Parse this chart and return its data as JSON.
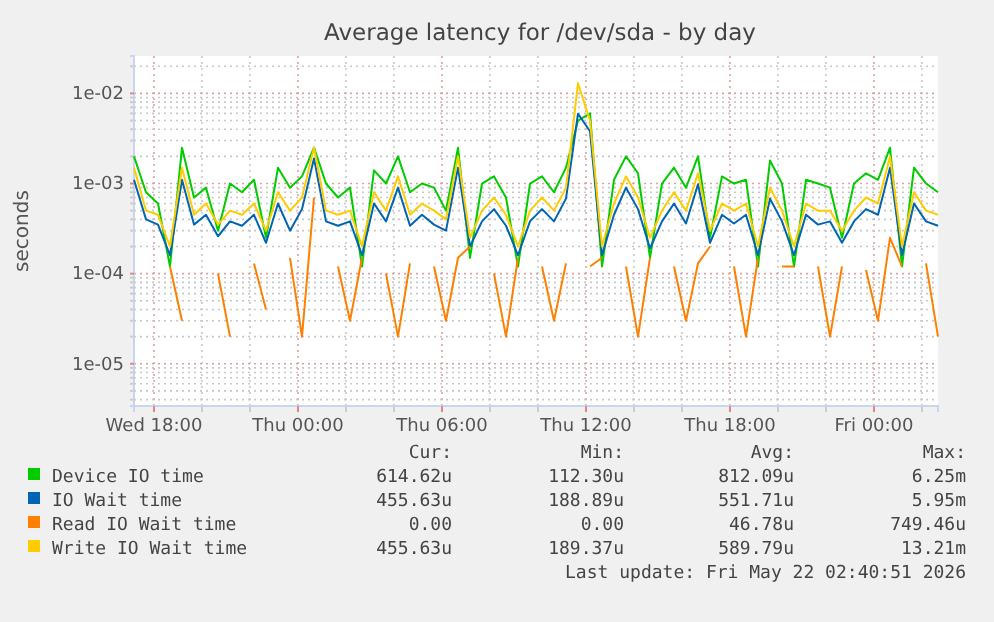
{
  "chart_data": {
    "type": "line",
    "title": "Average latency for /dev/sda - by day",
    "ylabel": "seconds",
    "log": true,
    "grid": true,
    "legend": "bottom",
    "marker": "none",
    "line_style": "solid",
    "xlim": [
      "2026-05-20T17:10",
      "2026-05-22T02:40"
    ],
    "xticks": [
      {
        "value": "2026-05-20T18:00",
        "label": "Wed 18:00"
      },
      {
        "value": "2026-05-20T20:00",
        "label": null
      },
      {
        "value": "2026-05-20T22:00",
        "label": null
      },
      {
        "value": "2026-05-21T00:00",
        "label": "Thu 00:00"
      },
      {
        "value": "2026-05-21T02:00",
        "label": null
      },
      {
        "value": "2026-05-21T04:00",
        "label": null
      },
      {
        "value": "2026-05-21T06:00",
        "label": "Thu 06:00"
      },
      {
        "value": "2026-05-21T08:00",
        "label": null
      },
      {
        "value": "2026-05-21T10:00",
        "label": null
      },
      {
        "value": "2026-05-21T12:00",
        "label": "Thu 12:00"
      },
      {
        "value": "2026-05-21T14:00",
        "label": null
      },
      {
        "value": "2026-05-21T16:00",
        "label": null
      },
      {
        "value": "2026-05-21T18:00",
        "label": "Thu 18:00"
      },
      {
        "value": "2026-05-21T20:00",
        "label": null
      },
      {
        "value": "2026-05-21T22:00",
        "label": null
      },
      {
        "value": "2026-05-22T00:00",
        "label": "Fri 00:00"
      },
      {
        "value": "2026-05-22T02:00",
        "label": null
      }
    ],
    "ylim": [
      3.4e-06,
      0.026
    ],
    "yticks": [
      {
        "value": 4e-06,
        "label": null
      },
      {
        "value": 5e-06,
        "label": null
      },
      {
        "value": 6e-06,
        "label": null
      },
      {
        "value": 7e-06,
        "label": null
      },
      {
        "value": 8e-06,
        "label": null
      },
      {
        "value": 9e-06,
        "label": null
      },
      {
        "value": 1e-05,
        "label": "1e-05"
      },
      {
        "value": 2e-05,
        "label": null
      },
      {
        "value": 3e-05,
        "label": null
      },
      {
        "value": 4e-05,
        "label": null
      },
      {
        "value": 5e-05,
        "label": null
      },
      {
        "value": 6e-05,
        "label": null
      },
      {
        "value": 7e-05,
        "label": null
      },
      {
        "value": 8e-05,
        "label": null
      },
      {
        "value": 9e-05,
        "label": null
      },
      {
        "value": 0.0001,
        "label": "1e-04"
      },
      {
        "value": 0.0002,
        "label": null
      },
      {
        "value": 0.0003,
        "label": null
      },
      {
        "value": 0.0004,
        "label": null
      },
      {
        "value": 0.0005,
        "label": null
      },
      {
        "value": 0.0006,
        "label": null
      },
      {
        "value": 0.0007,
        "label": null
      },
      {
        "value": 0.0008,
        "label": null
      },
      {
        "value": 0.0009,
        "label": null
      },
      {
        "value": 0.001,
        "label": "1e-03"
      },
      {
        "value": 0.002,
        "label": null
      },
      {
        "value": 0.003,
        "label": null
      },
      {
        "value": 0.004,
        "label": null
      },
      {
        "value": 0.005,
        "label": null
      },
      {
        "value": 0.006,
        "label": null
      },
      {
        "value": 0.007,
        "label": null
      },
      {
        "value": 0.008,
        "label": null
      },
      {
        "value": 0.009,
        "label": null
      },
      {
        "value": 0.01,
        "label": "1e-02"
      },
      {
        "value": 0.02,
        "label": null
      }
    ],
    "x": [
      "2026-05-20T17:10",
      "2026-05-20T17:40",
      "2026-05-20T18:10",
      "2026-05-20T18:40",
      "2026-05-20T19:10",
      "2026-05-20T19:40",
      "2026-05-20T20:10",
      "2026-05-20T20:40",
      "2026-05-20T21:10",
      "2026-05-20T21:40",
      "2026-05-20T22:10",
      "2026-05-20T22:40",
      "2026-05-20T23:10",
      "2026-05-20T23:40",
      "2026-05-21T00:10",
      "2026-05-21T00:40",
      "2026-05-21T01:10",
      "2026-05-21T01:40",
      "2026-05-21T02:10",
      "2026-05-21T02:40",
      "2026-05-21T03:10",
      "2026-05-21T03:40",
      "2026-05-21T04:10",
      "2026-05-21T04:40",
      "2026-05-21T05:10",
      "2026-05-21T05:40",
      "2026-05-21T06:10",
      "2026-05-21T06:40",
      "2026-05-21T07:10",
      "2026-05-21T07:40",
      "2026-05-21T08:10",
      "2026-05-21T08:40",
      "2026-05-21T09:10",
      "2026-05-21T09:40",
      "2026-05-21T10:10",
      "2026-05-21T10:40",
      "2026-05-21T11:10",
      "2026-05-21T11:40",
      "2026-05-21T12:10",
      "2026-05-21T12:40",
      "2026-05-21T13:10",
      "2026-05-21T13:40",
      "2026-05-21T14:10",
      "2026-05-21T14:40",
      "2026-05-21T15:10",
      "2026-05-21T15:40",
      "2026-05-21T16:10",
      "2026-05-21T16:40",
      "2026-05-21T17:10",
      "2026-05-21T17:40",
      "2026-05-21T18:10",
      "2026-05-21T18:40",
      "2026-05-21T19:10",
      "2026-05-21T19:40",
      "2026-05-21T20:10",
      "2026-05-21T20:40",
      "2026-05-21T21:10",
      "2026-05-21T21:40",
      "2026-05-21T22:10",
      "2026-05-21T22:40",
      "2026-05-21T23:10",
      "2026-05-21T23:40",
      "2026-05-22T00:10",
      "2026-05-22T00:40",
      "2026-05-22T01:10",
      "2026-05-22T01:40",
      "2026-05-22T02:10",
      "2026-05-22T02:40"
    ],
    "series": [
      {
        "name": "Device IO time",
        "color": "#00cc00",
        "values": [
          0.002,
          0.0008,
          0.0006,
          0.00012,
          0.0025,
          0.0007,
          0.0009,
          0.0003,
          0.001,
          0.0008,
          0.0011,
          0.00025,
          0.0015,
          0.0009,
          0.0012,
          0.0025,
          0.001,
          0.0007,
          0.0009,
          0.00012,
          0.0014,
          0.001,
          0.002,
          0.0008,
          0.001,
          0.0009,
          0.0005,
          0.0025,
          0.00015,
          0.001,
          0.0012,
          0.0007,
          0.00012,
          0.001,
          0.0012,
          0.0008,
          0.0015,
          0.005,
          0.006,
          0.00012,
          0.0011,
          0.002,
          0.0013,
          0.00015,
          0.001,
          0.0015,
          0.0009,
          0.002,
          0.00025,
          0.0012,
          0.001,
          0.0011,
          0.00012,
          0.0018,
          0.001,
          0.00012,
          0.0011,
          0.001,
          0.0009,
          0.00025,
          0.001,
          0.0013,
          0.0011,
          0.0025,
          0.00012,
          0.0015,
          0.001,
          0.0008
        ]
      },
      {
        "name": "IO Wait time",
        "color": "#0066b3",
        "values": [
          0.0011,
          0.0004,
          0.00035,
          0.00016,
          0.0011,
          0.00035,
          0.00045,
          0.00026,
          0.00038,
          0.00034,
          0.00045,
          0.00022,
          0.0006,
          0.0003,
          0.00052,
          0.0019,
          0.00038,
          0.00034,
          0.00038,
          0.00016,
          0.0006,
          0.00038,
          0.0009,
          0.00034,
          0.00045,
          0.00035,
          0.0003,
          0.0015,
          0.0002,
          0.00038,
          0.00052,
          0.00034,
          0.00016,
          0.00038,
          0.00052,
          0.00038,
          0.00068,
          0.00595,
          0.0038,
          0.00016,
          0.00045,
          0.0009,
          0.00052,
          0.00019,
          0.00038,
          0.0006,
          0.00036,
          0.00098,
          0.00022,
          0.00045,
          0.00036,
          0.00045,
          0.00016,
          0.00068,
          0.00038,
          0.00016,
          0.00045,
          0.00035,
          0.00038,
          0.00022,
          0.00038,
          0.00052,
          0.00045,
          0.0015,
          0.00016,
          0.0006,
          0.00038,
          0.00034
        ]
      },
      {
        "name": "Read IO Wait time",
        "color": "#ff8000",
        "values": [
          null,
          null,
          null,
          0.00012,
          3e-05,
          null,
          null,
          0.0001,
          2e-05,
          null,
          0.00013,
          4e-05,
          null,
          0.00015,
          2e-05,
          0.0007,
          null,
          0.00012,
          3e-05,
          0.00015,
          null,
          0.0001,
          2e-05,
          0.00013,
          null,
          0.00012,
          3e-05,
          0.00015,
          0.0002,
          null,
          0.0001,
          2e-05,
          0.00015,
          null,
          0.00012,
          3e-05,
          0.00013,
          null,
          0.00012,
          0.00015,
          null,
          0.00012,
          2e-05,
          0.00015,
          null,
          0.00012,
          3e-05,
          0.00013,
          0.0002,
          null,
          0.00012,
          2e-05,
          0.00015,
          null,
          0.00012,
          0.00012,
          null,
          0.00012,
          2e-05,
          0.00012,
          null,
          0.00011,
          3e-05,
          0.00025,
          0.00012,
          null,
          0.00013,
          2e-05
        ]
      },
      {
        "name": "Write IO Wait time",
        "color": "#ffcc00",
        "values": [
          0.0015,
          0.0005,
          0.00045,
          0.0002,
          0.0015,
          0.00045,
          0.0006,
          0.00035,
          0.0005,
          0.00045,
          0.0006,
          0.0003,
          0.0008,
          0.0005,
          0.0007,
          0.0025,
          0.0005,
          0.00045,
          0.0005,
          0.0002,
          0.0008,
          0.0005,
          0.0012,
          0.00045,
          0.0006,
          0.0005,
          0.0004,
          0.002,
          0.00025,
          0.0005,
          0.0007,
          0.00045,
          0.0002,
          0.0005,
          0.0007,
          0.0005,
          0.0009,
          0.013,
          0.005,
          0.0002,
          0.0006,
          0.0012,
          0.0007,
          0.00025,
          0.0005,
          0.0008,
          0.0005,
          0.0013,
          0.0003,
          0.0006,
          0.0005,
          0.0006,
          0.0002,
          0.0009,
          0.0005,
          0.0002,
          0.0006,
          0.0005,
          0.0005,
          0.0003,
          0.0005,
          0.0007,
          0.0006,
          0.002,
          0.0002,
          0.0008,
          0.0005,
          0.00045
        ]
      }
    ],
    "annotations": [
      "Cur:",
      "Min:",
      "Avg:",
      "Max:",
      "614.62u",
      "112.30u",
      "812.09u",
      "6.25m",
      "455.63u",
      "188.89u",
      "551.71u",
      "5.95m",
      "0.00",
      "0.00",
      "46.78u",
      "749.46u",
      "455.63u",
      "189.37u",
      "589.79u",
      "13.21m",
      "Last update: Fri May 22 02:40:51 2026"
    ]
  }
}
